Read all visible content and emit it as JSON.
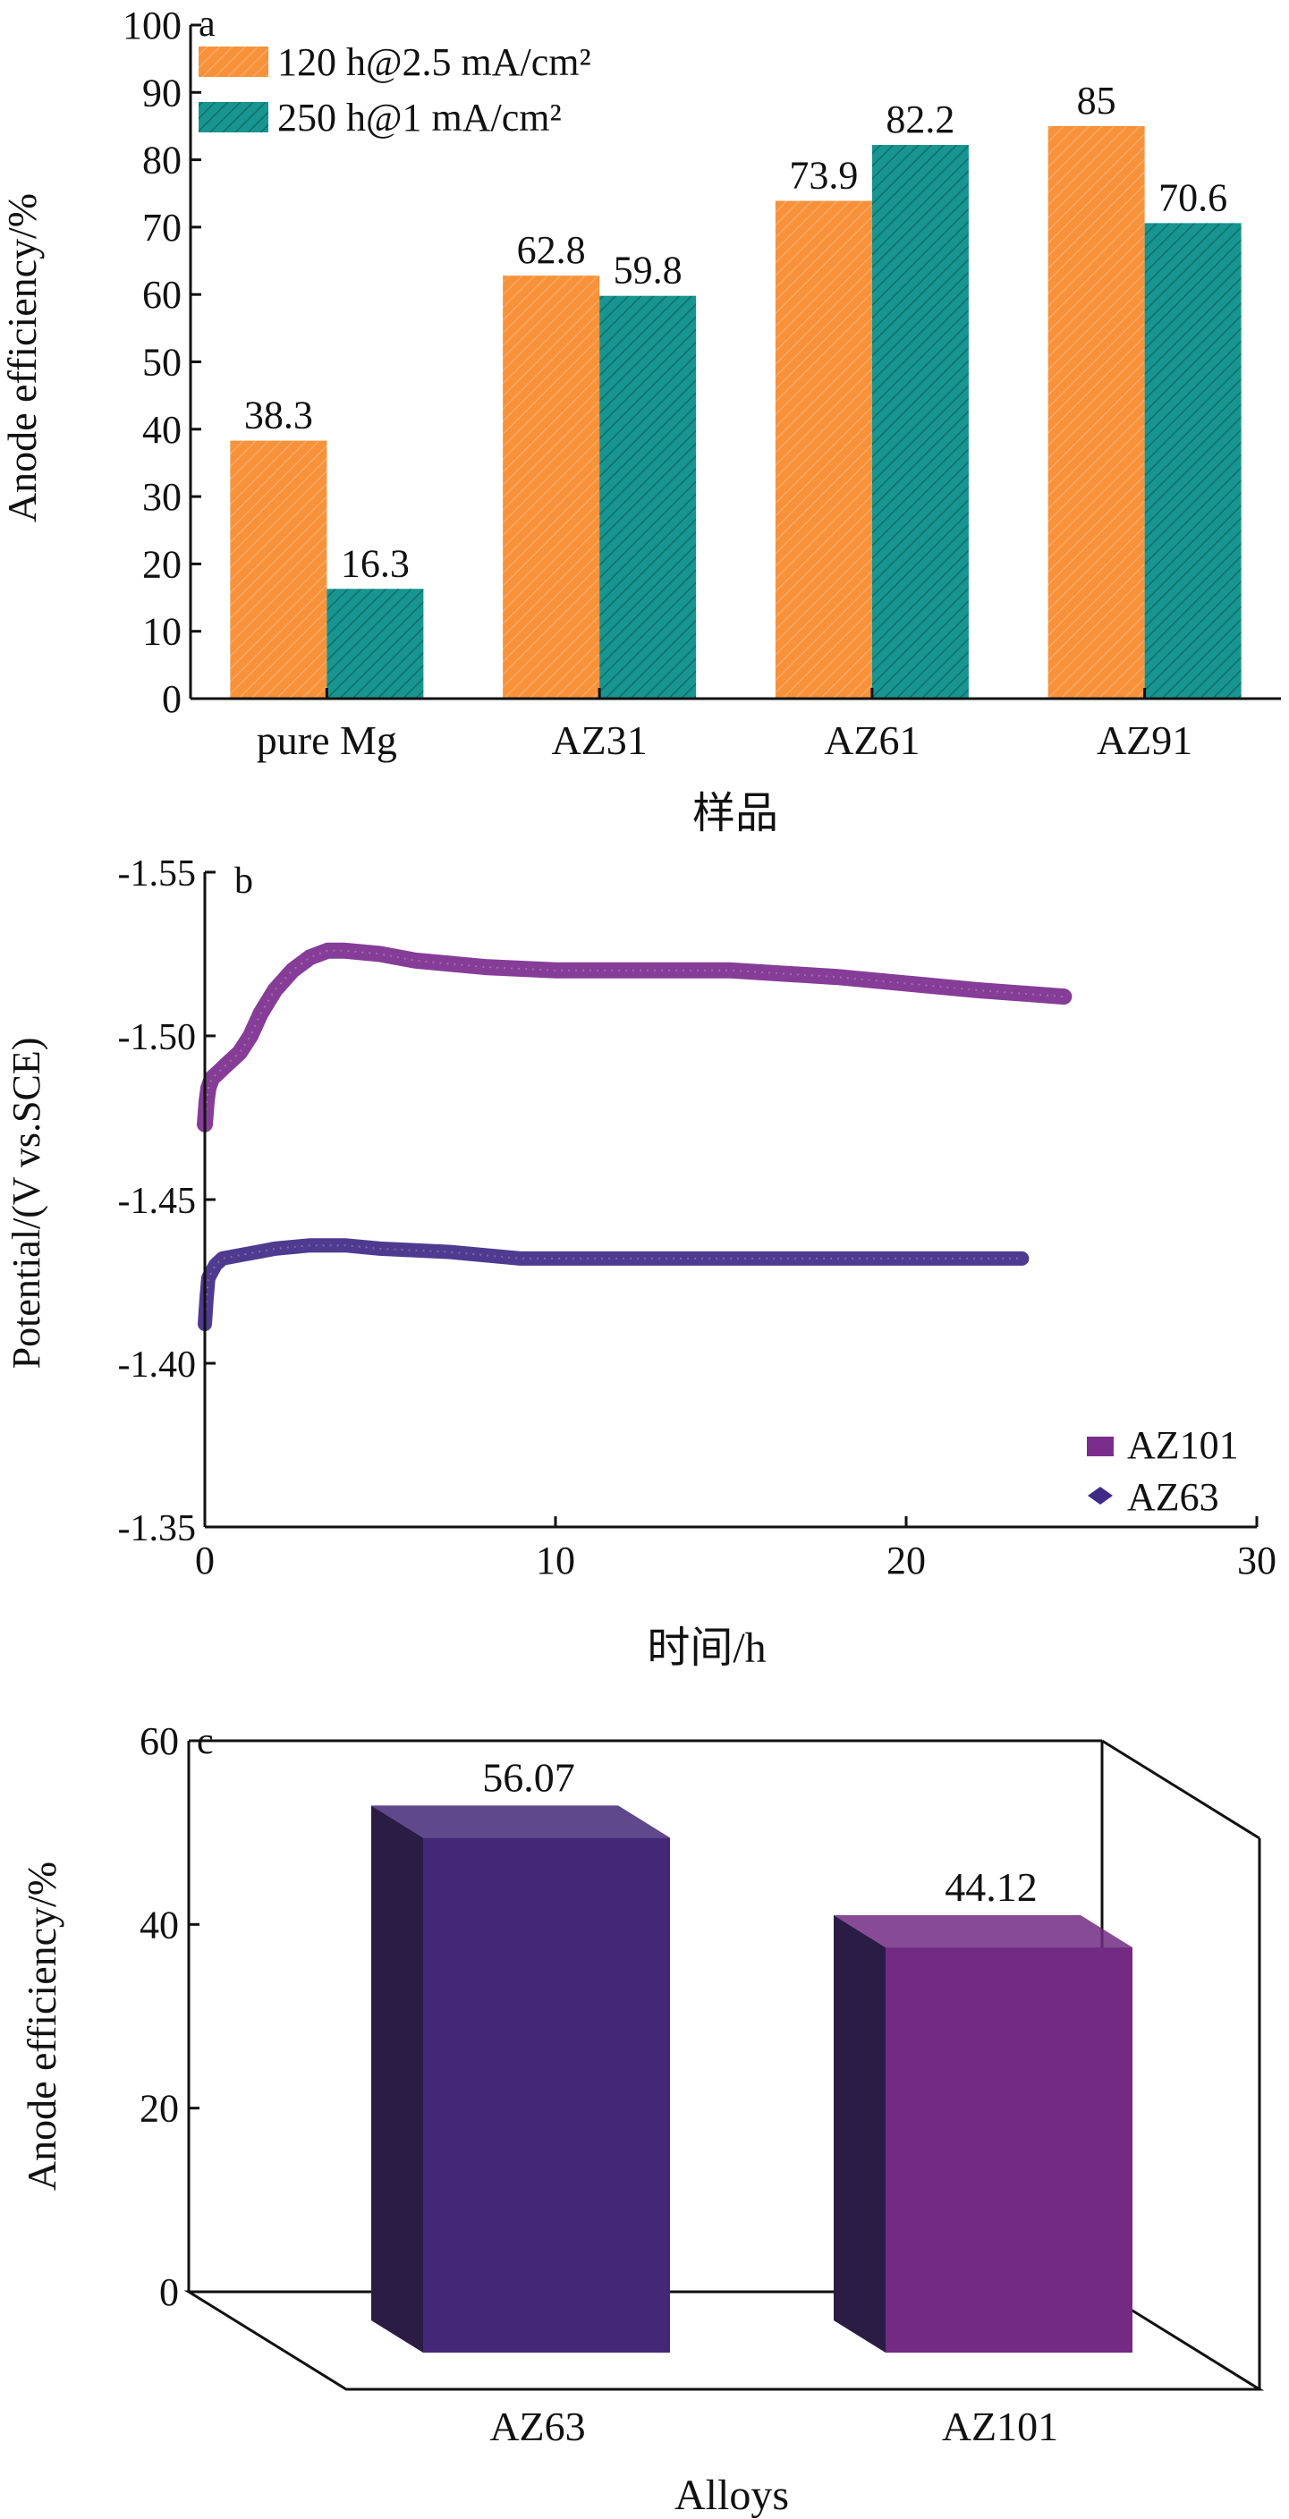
{
  "colors": {
    "orange": "#F7923A",
    "teal": "#189590",
    "az101": "#7B2D8E",
    "az63": "#3F2A86",
    "bar3d_front_az63": "#432878",
    "bar3d_front_az101": "#722A82"
  },
  "chart_data": [
    {
      "type": "bar",
      "panel_label": "a",
      "categories": [
        "pure Mg",
        "AZ31",
        "AZ61",
        "AZ91"
      ],
      "series": [
        {
          "name": "120 h@2.5 mA/cm²",
          "values": [
            38.3,
            62.8,
            73.9,
            85
          ]
        },
        {
          "name": "250 h@1 mA/cm²",
          "values": [
            16.3,
            59.8,
            82.2,
            70.6
          ]
        }
      ],
      "data_labels": [
        [
          "38.3",
          "62.8",
          "73.9",
          "85"
        ],
        [
          "16.3",
          "59.8",
          "82.2",
          "70.6"
        ]
      ],
      "xlabel": "样品",
      "ylabel": "Anode efficiency/%",
      "ylim": [
        0,
        100
      ],
      "yticks": [
        0,
        10,
        20,
        30,
        40,
        50,
        60,
        70,
        80,
        90,
        100
      ],
      "legend_position": "top-left",
      "grid": false
    },
    {
      "type": "line",
      "panel_label": "b",
      "xlabel": "时间/h",
      "ylabel": "Potential/(V vs.SCE)",
      "xlim": [
        0,
        30
      ],
      "ylim": [
        -1.35,
        -1.55
      ],
      "xticks": [
        "0",
        "10",
        "20",
        "30"
      ],
      "yticks": [
        "-1.55",
        "-1.50",
        "-1.45",
        "-1.40",
        "-1.35"
      ],
      "legend_position": "bottom-right",
      "grid": false,
      "series": [
        {
          "name": "AZ101",
          "x": [
            0,
            0.05,
            0.1,
            0.2,
            0.4,
            0.6,
            0.8,
            1.0,
            1.3,
            1.6,
            2.0,
            2.5,
            3.0,
            3.5,
            4.0,
            5.0,
            6.0,
            8.0,
            10.0,
            12.0,
            15.0,
            18.0,
            20.0,
            22.0,
            24.5
          ],
          "y": [
            -1.473,
            -1.48,
            -1.484,
            -1.487,
            -1.489,
            -1.491,
            -1.493,
            -1.495,
            -1.5,
            -1.507,
            -1.514,
            -1.52,
            -1.524,
            -1.526,
            -1.526,
            -1.525,
            -1.523,
            -1.521,
            -1.52,
            -1.52,
            -1.52,
            -1.518,
            -1.516,
            -1.514,
            -1.512
          ]
        },
        {
          "name": "AZ63",
          "x": [
            0,
            0.05,
            0.1,
            0.2,
            0.3,
            0.5,
            1.0,
            1.5,
            2.0,
            3.0,
            4.0,
            5.0,
            7.0,
            9.0,
            12.0,
            15.0,
            18.0,
            21.0,
            23.3
          ],
          "y": [
            -1.412,
            -1.42,
            -1.426,
            -1.428,
            -1.43,
            -1.432,
            -1.433,
            -1.434,
            -1.435,
            -1.436,
            -1.436,
            -1.435,
            -1.434,
            -1.432,
            -1.432,
            -1.432,
            -1.432,
            -1.432,
            -1.432
          ]
        }
      ]
    },
    {
      "type": "bar",
      "panel_label": "c",
      "categories": [
        "AZ63",
        "AZ101"
      ],
      "values": [
        56.07,
        44.12
      ],
      "data_labels": [
        "56.07",
        "44.12"
      ],
      "xlabel": "Alloys",
      "ylabel": "Anode efficiency/%",
      "ylim": [
        0,
        60
      ],
      "yticks": [
        0,
        20,
        40,
        60
      ],
      "grid": false
    }
  ]
}
